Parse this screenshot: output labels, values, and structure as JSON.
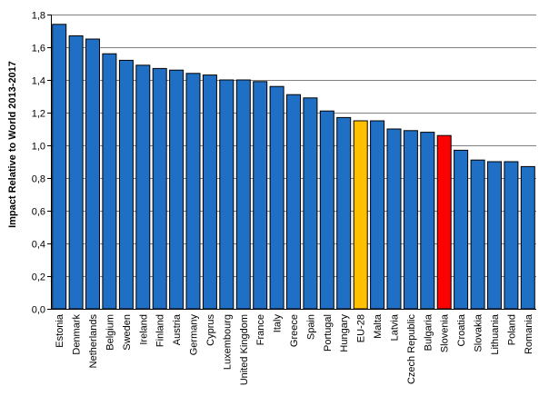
{
  "chart_data": {
    "type": "bar",
    "title": "",
    "xlabel": "",
    "ylabel": "Impact Relative to World 2013-2017",
    "ylim": [
      0,
      1.8
    ],
    "yticks": [
      0,
      0.2,
      0.4,
      0.6,
      0.8,
      1.0,
      1.2,
      1.4,
      1.6,
      1.8
    ],
    "ytick_labels": [
      "0,0",
      "0,2",
      "0,4",
      "0,6",
      "0,8",
      "1,0",
      "1,2",
      "1,4",
      "1,6",
      "1,8"
    ],
    "grid": true,
    "legend": "none",
    "categories": [
      "Estonia",
      "Denmark",
      "Netherlands",
      "Belgium",
      "Sweden",
      "Ireland",
      "Finland",
      "Austria",
      "Germany",
      "Cyprus",
      "Luxembourg",
      "United Kingdom",
      "France",
      "Italy",
      "Greece",
      "Spain",
      "Portugal",
      "Hungary",
      "EU-28",
      "Malta",
      "Latvia",
      "Czech Republic",
      "Bulgaria",
      "Slovenia",
      "Croatia",
      "Slovakia",
      "Lithuania",
      "Poland",
      "Romania"
    ],
    "values": [
      1.74,
      1.67,
      1.65,
      1.56,
      1.52,
      1.49,
      1.47,
      1.46,
      1.44,
      1.43,
      1.4,
      1.4,
      1.39,
      1.36,
      1.31,
      1.29,
      1.21,
      1.17,
      1.15,
      1.15,
      1.1,
      1.09,
      1.08,
      1.06,
      0.97,
      0.91,
      0.9,
      0.9,
      0.87
    ],
    "colors": {
      "default": "#1f6fc5",
      "EU-28": "#ffc000",
      "Slovenia": "#ff0000",
      "edge": "#000000",
      "grid": "#808080"
    }
  }
}
